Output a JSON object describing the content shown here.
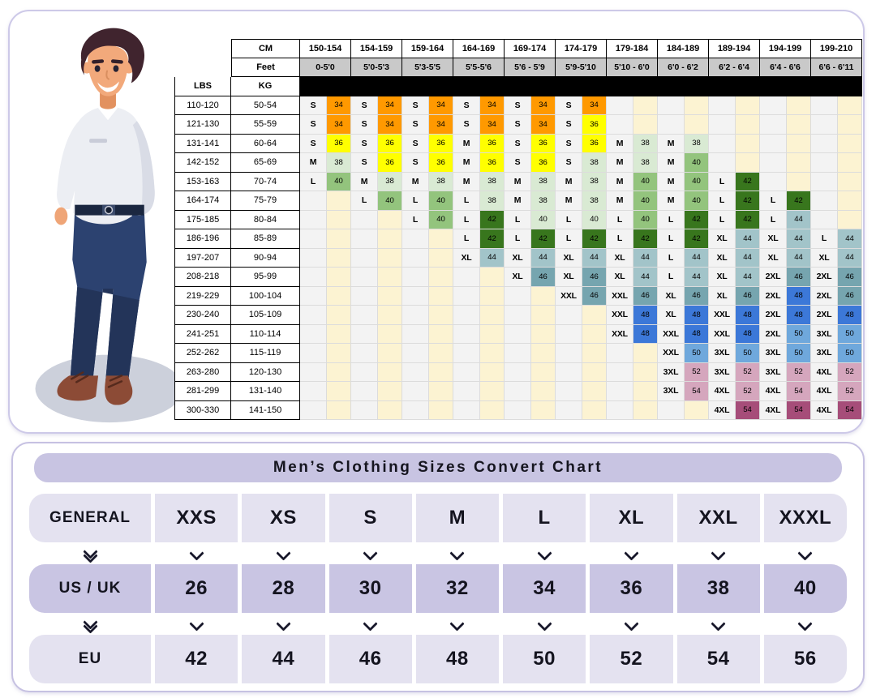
{
  "top_panel": {
    "illustration": "cartoon-man-standing",
    "table_labels": {
      "cm": "CM",
      "feet": "Feet",
      "lbs": "LBS",
      "kg": "KG"
    }
  },
  "bottom_panel": {
    "title": "Men’s Clothing Sizes Convert Chart"
  },
  "icons": {
    "chevron_down": "css-chevron",
    "chevron_down_double": "css-double-chevron"
  },
  "colors": {
    "panel_border": "#cdc9e8",
    "pill_bg": "#c8c4e2",
    "row_light": "#e4e2f0",
    "row_dark": "#c9c5e3",
    "feet_row_bg": "#c9c9c9",
    "black_band": "#000000",
    "empty_number_bg": "#fcf3d2",
    "cells": {
      "or": "#ff9900",
      "ye": "#ffff00",
      "lg": "#d9ead3",
      "mg": "#93c47d",
      "dg": "#38761d",
      "st": "#a2c4c9",
      "tl": "#76a5af",
      "bl": "#3c78d8",
      "lb": "#6fa8dc",
      "pk": "#d5a6bd",
      "ma": "#a64d79"
    }
  },
  "chart_data": [
    {
      "type": "table",
      "title": "Height / weight to men's size matrix",
      "cm_columns": [
        "150-154",
        "154-159",
        "159-164",
        "164-169",
        "169-174",
        "174-179",
        "179-184",
        "184-189",
        "189-194",
        "194-199",
        "199-210"
      ],
      "feet_columns": [
        "0-5'0",
        "5'0-5'3",
        "5'3-5'5",
        "5'5-5'6",
        "5'6 - 5'9",
        "5'9-5'10",
        "5'10 - 6'0",
        "6'0 - 6'2",
        "6'2 - 6'4",
        "6'4 - 6'6",
        "6'6 - 6'11"
      ],
      "rows": [
        {
          "lbs": "110-120",
          "kg": "50-54",
          "cells": [
            [
              "S",
              "34",
              "or"
            ],
            [
              "S",
              "34",
              "or"
            ],
            [
              "S",
              "34",
              "or"
            ],
            [
              "S",
              "34",
              "or"
            ],
            [
              "S",
              "34",
              "or"
            ],
            [
              "S",
              "34",
              "or"
            ],
            0,
            0,
            0,
            0,
            0
          ]
        },
        {
          "lbs": "121-130",
          "kg": "55-59",
          "cells": [
            [
              "S",
              "34",
              "or"
            ],
            [
              "S",
              "34",
              "or"
            ],
            [
              "S",
              "34",
              "or"
            ],
            [
              "S",
              "34",
              "or"
            ],
            [
              "S",
              "34",
              "or"
            ],
            [
              "S",
              "36",
              "ye"
            ],
            0,
            0,
            0,
            0,
            0
          ]
        },
        {
          "lbs": "131-141",
          "kg": "60-64",
          "cells": [
            [
              "S",
              "36",
              "ye"
            ],
            [
              "S",
              "36",
              "ye"
            ],
            [
              "S",
              "36",
              "ye"
            ],
            [
              "M",
              "36",
              "ye"
            ],
            [
              "S",
              "36",
              "ye"
            ],
            [
              "S",
              "36",
              "ye"
            ],
            [
              "M",
              "38",
              "lg"
            ],
            [
              "M",
              "38",
              "lg"
            ],
            0,
            0,
            0
          ]
        },
        {
          "lbs": "142-152",
          "kg": "65-69",
          "cells": [
            [
              "M",
              "38",
              "lg"
            ],
            [
              "S",
              "36",
              "ye"
            ],
            [
              "S",
              "36",
              "ye"
            ],
            [
              "M",
              "36",
              "ye"
            ],
            [
              "S",
              "36",
              "ye"
            ],
            [
              "S",
              "38",
              "lg"
            ],
            [
              "M",
              "38",
              "lg"
            ],
            [
              "M",
              "40",
              "mg"
            ],
            0,
            0,
            0
          ]
        },
        {
          "lbs": "153-163",
          "kg": "70-74",
          "cells": [
            [
              "L",
              "40",
              "mg"
            ],
            [
              "M",
              "38",
              "lg"
            ],
            [
              "M",
              "38",
              "lg"
            ],
            [
              "M",
              "38",
              "lg"
            ],
            [
              "M",
              "38",
              "lg"
            ],
            [
              "M",
              "38",
              "lg"
            ],
            [
              "M",
              "40",
              "mg"
            ],
            [
              "M",
              "40",
              "mg"
            ],
            [
              "L",
              "42",
              "dg"
            ],
            0,
            0
          ]
        },
        {
          "lbs": "164-174",
          "kg": "75-79",
          "cells": [
            0,
            [
              "L",
              "40",
              "mg"
            ],
            [
              "L",
              "40",
              "mg"
            ],
            [
              "L",
              "38",
              "lg"
            ],
            [
              "M",
              "38",
              "lg"
            ],
            [
              "M",
              "38",
              "lg"
            ],
            [
              "M",
              "40",
              "mg"
            ],
            [
              "M",
              "40",
              "mg"
            ],
            [
              "L",
              "42",
              "dg"
            ],
            [
              "L",
              "42",
              "dg"
            ],
            0
          ]
        },
        {
          "lbs": "175-185",
          "kg": "80-84",
          "cells": [
            0,
            0,
            [
              "L",
              "40",
              "mg"
            ],
            [
              "L",
              "42",
              "dg"
            ],
            [
              "L",
              "40",
              "lg"
            ],
            [
              "L",
              "40",
              "lg"
            ],
            [
              "L",
              "40",
              "mg"
            ],
            [
              "L",
              "42",
              "dg"
            ],
            [
              "L",
              "42",
              "dg"
            ],
            [
              "L",
              "44",
              "st"
            ],
            0
          ]
        },
        {
          "lbs": "186-196",
          "kg": "85-89",
          "cells": [
            0,
            0,
            0,
            [
              "L",
              "42",
              "dg"
            ],
            [
              "L",
              "42",
              "dg"
            ],
            [
              "L",
              "42",
              "dg"
            ],
            [
              "L",
              "42",
              "dg"
            ],
            [
              "L",
              "42",
              "dg"
            ],
            [
              "XL",
              "44",
              "st"
            ],
            [
              "XL",
              "44",
              "st"
            ],
            [
              "L",
              "44",
              "st"
            ]
          ]
        },
        {
          "lbs": "197-207",
          "kg": "90-94",
          "cells": [
            0,
            0,
            0,
            [
              "XL",
              "44",
              "st"
            ],
            [
              "XL",
              "44",
              "st"
            ],
            [
              "XL",
              "44",
              "st"
            ],
            [
              "XL",
              "44",
              "st"
            ],
            [
              "L",
              "44",
              "st"
            ],
            [
              "XL",
              "44",
              "st"
            ],
            [
              "XL",
              "44",
              "st"
            ],
            [
              "XL",
              "44",
              "st"
            ]
          ]
        },
        {
          "lbs": "208-218",
          "kg": "95-99",
          "cells": [
            0,
            0,
            0,
            0,
            [
              "XL",
              "46",
              "tl"
            ],
            [
              "XL",
              "46",
              "tl"
            ],
            [
              "XL",
              "44",
              "st"
            ],
            [
              "L",
              "44",
              "st"
            ],
            [
              "XL",
              "44",
              "st"
            ],
            [
              "2XL",
              "46",
              "tl"
            ],
            [
              "2XL",
              "46",
              "tl"
            ]
          ]
        },
        {
          "lbs": "219-229",
          "kg": "100-104",
          "cells": [
            0,
            0,
            0,
            0,
            0,
            [
              "XXL",
              "46",
              "tl"
            ],
            [
              "XXL",
              "46",
              "tl"
            ],
            [
              "XL",
              "46",
              "tl"
            ],
            [
              "XL",
              "46",
              "tl"
            ],
            [
              "2XL",
              "48",
              "bl"
            ],
            [
              "2XL",
              "46",
              "tl"
            ]
          ]
        },
        {
          "lbs": "230-240",
          "kg": "105-109",
          "cells": [
            0,
            0,
            0,
            0,
            0,
            0,
            [
              "XXL",
              "48",
              "bl"
            ],
            [
              "XL",
              "48",
              "bl"
            ],
            [
              "XXL",
              "48",
              "bl"
            ],
            [
              "2XL",
              "48",
              "bl"
            ],
            [
              "2XL",
              "48",
              "bl"
            ]
          ]
        },
        {
          "lbs": "241-251",
          "kg": "110-114",
          "cells": [
            0,
            0,
            0,
            0,
            0,
            0,
            [
              "XXL",
              "48",
              "bl"
            ],
            [
              "XXL",
              "48",
              "bl"
            ],
            [
              "XXL",
              "48",
              "bl"
            ],
            [
              "2XL",
              "50",
              "lb"
            ],
            [
              "3XL",
              "50",
              "lb"
            ]
          ]
        },
        {
          "lbs": "252-262",
          "kg": "115-119",
          "cells": [
            0,
            0,
            0,
            0,
            0,
            0,
            0,
            [
              "XXL",
              "50",
              "lb"
            ],
            [
              "3XL",
              "50",
              "lb"
            ],
            [
              "3XL",
              "50",
              "lb"
            ],
            [
              "3XL",
              "50",
              "lb"
            ]
          ]
        },
        {
          "lbs": "263-280",
          "kg": "120-130",
          "cells": [
            0,
            0,
            0,
            0,
            0,
            0,
            0,
            [
              "3XL",
              "52",
              "pk"
            ],
            [
              "3XL",
              "52",
              "pk"
            ],
            [
              "3XL",
              "52",
              "pk"
            ],
            [
              "4XL",
              "52",
              "pk"
            ]
          ]
        },
        {
          "lbs": "281-299",
          "kg": "131-140",
          "cells": [
            0,
            0,
            0,
            0,
            0,
            0,
            0,
            [
              "3XL",
              "54",
              "pk"
            ],
            [
              "4XL",
              "52",
              "pk"
            ],
            [
              "4XL",
              "54",
              "pk"
            ],
            [
              "4XL",
              "52",
              "pk"
            ]
          ]
        },
        {
          "lbs": "300-330",
          "kg": "141-150",
          "cells": [
            0,
            0,
            0,
            0,
            0,
            0,
            0,
            0,
            [
              "4XL",
              "54",
              "ma"
            ],
            [
              "4XL",
              "54",
              "ma"
            ],
            [
              "4XL",
              "54",
              "ma"
            ]
          ]
        }
      ]
    },
    {
      "type": "table",
      "title": "Men’s Clothing Sizes Convert Chart",
      "rows": [
        {
          "label": "GENERAL",
          "values": [
            "XXS",
            "XS",
            "S",
            "M",
            "L",
            "XL",
            "XXL",
            "XXXL"
          ]
        },
        {
          "label": "US / UK",
          "values": [
            "26",
            "28",
            "30",
            "32",
            "34",
            "36",
            "38",
            "40"
          ]
        },
        {
          "label": "EU",
          "values": [
            "42",
            "44",
            "46",
            "48",
            "50",
            "52",
            "54",
            "56"
          ]
        }
      ]
    }
  ]
}
